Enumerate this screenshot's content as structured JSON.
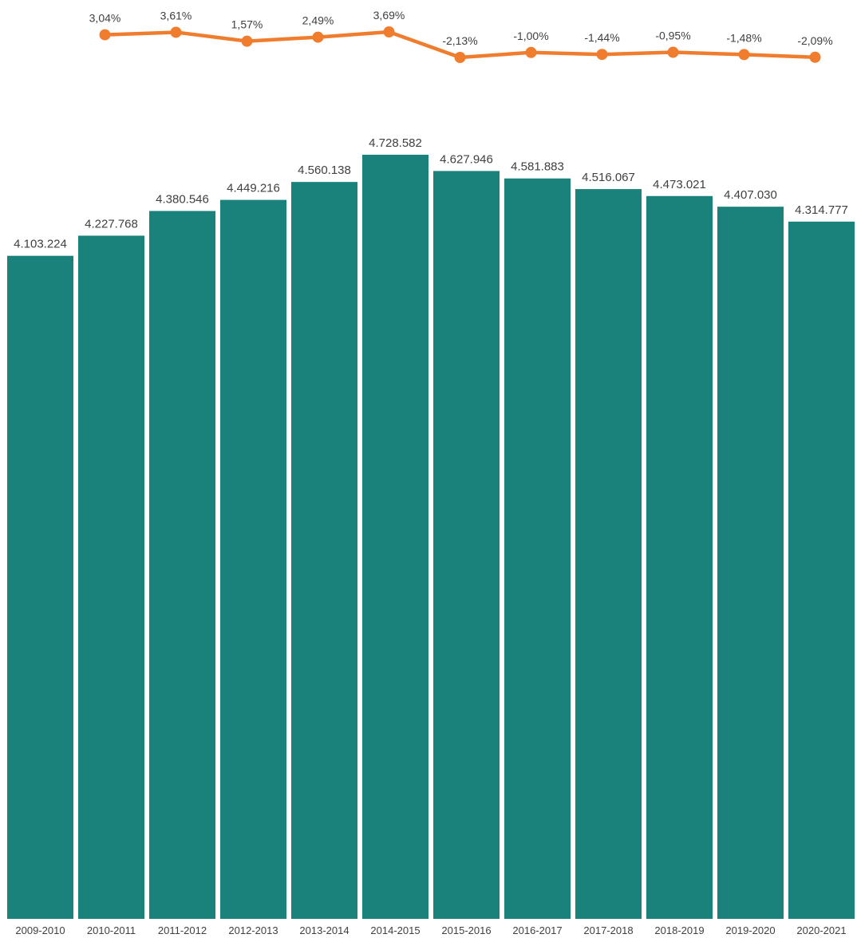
{
  "chart_data": {
    "type": "bar",
    "categories": [
      "2009-2010",
      "2010-2011",
      "2011-2012",
      "2012-2013",
      "2013-2014",
      "2014-2015",
      "2015-2016",
      "2016-2017",
      "2017-2018",
      "2018-2019",
      "2019-2020",
      "2020-2021"
    ],
    "series": [
      {
        "type": "bar",
        "color": "#1b827b",
        "values": [
          4103224,
          4227768,
          4380546,
          4449216,
          4560138,
          4728582,
          4627946,
          4581883,
          4516067,
          4473021,
          4407030,
          4314777
        ],
        "labels": [
          "4.103.224",
          "4.227.768",
          "4.380.546",
          "4.449.216",
          "4.560.138",
          "4.728.582",
          "4.627.946",
          "4.581.883",
          "4.516.067",
          "4.473.021",
          "4.407.030",
          "4.314.777"
        ]
      },
      {
        "type": "line",
        "color": "#ef7d2d",
        "values": [
          null,
          3.04,
          3.61,
          1.57,
          2.49,
          3.69,
          -2.13,
          -1.0,
          -1.44,
          -0.95,
          -1.48,
          -2.09
        ],
        "labels": [
          "",
          "3,04%",
          "3,61%",
          "1,57%",
          "2,49%",
          "3,69%",
          "-2,13%",
          "-1,00%",
          "-1,44%",
          "-0,95%",
          "-1,48%",
          "-2,09%"
        ]
      }
    ],
    "ylim": [
      0,
      5000000
    ],
    "y2lim": [
      -25,
      8
    ],
    "grid": false,
    "legend": "none",
    "title": "",
    "xlabel": "",
    "ylabel": ""
  }
}
